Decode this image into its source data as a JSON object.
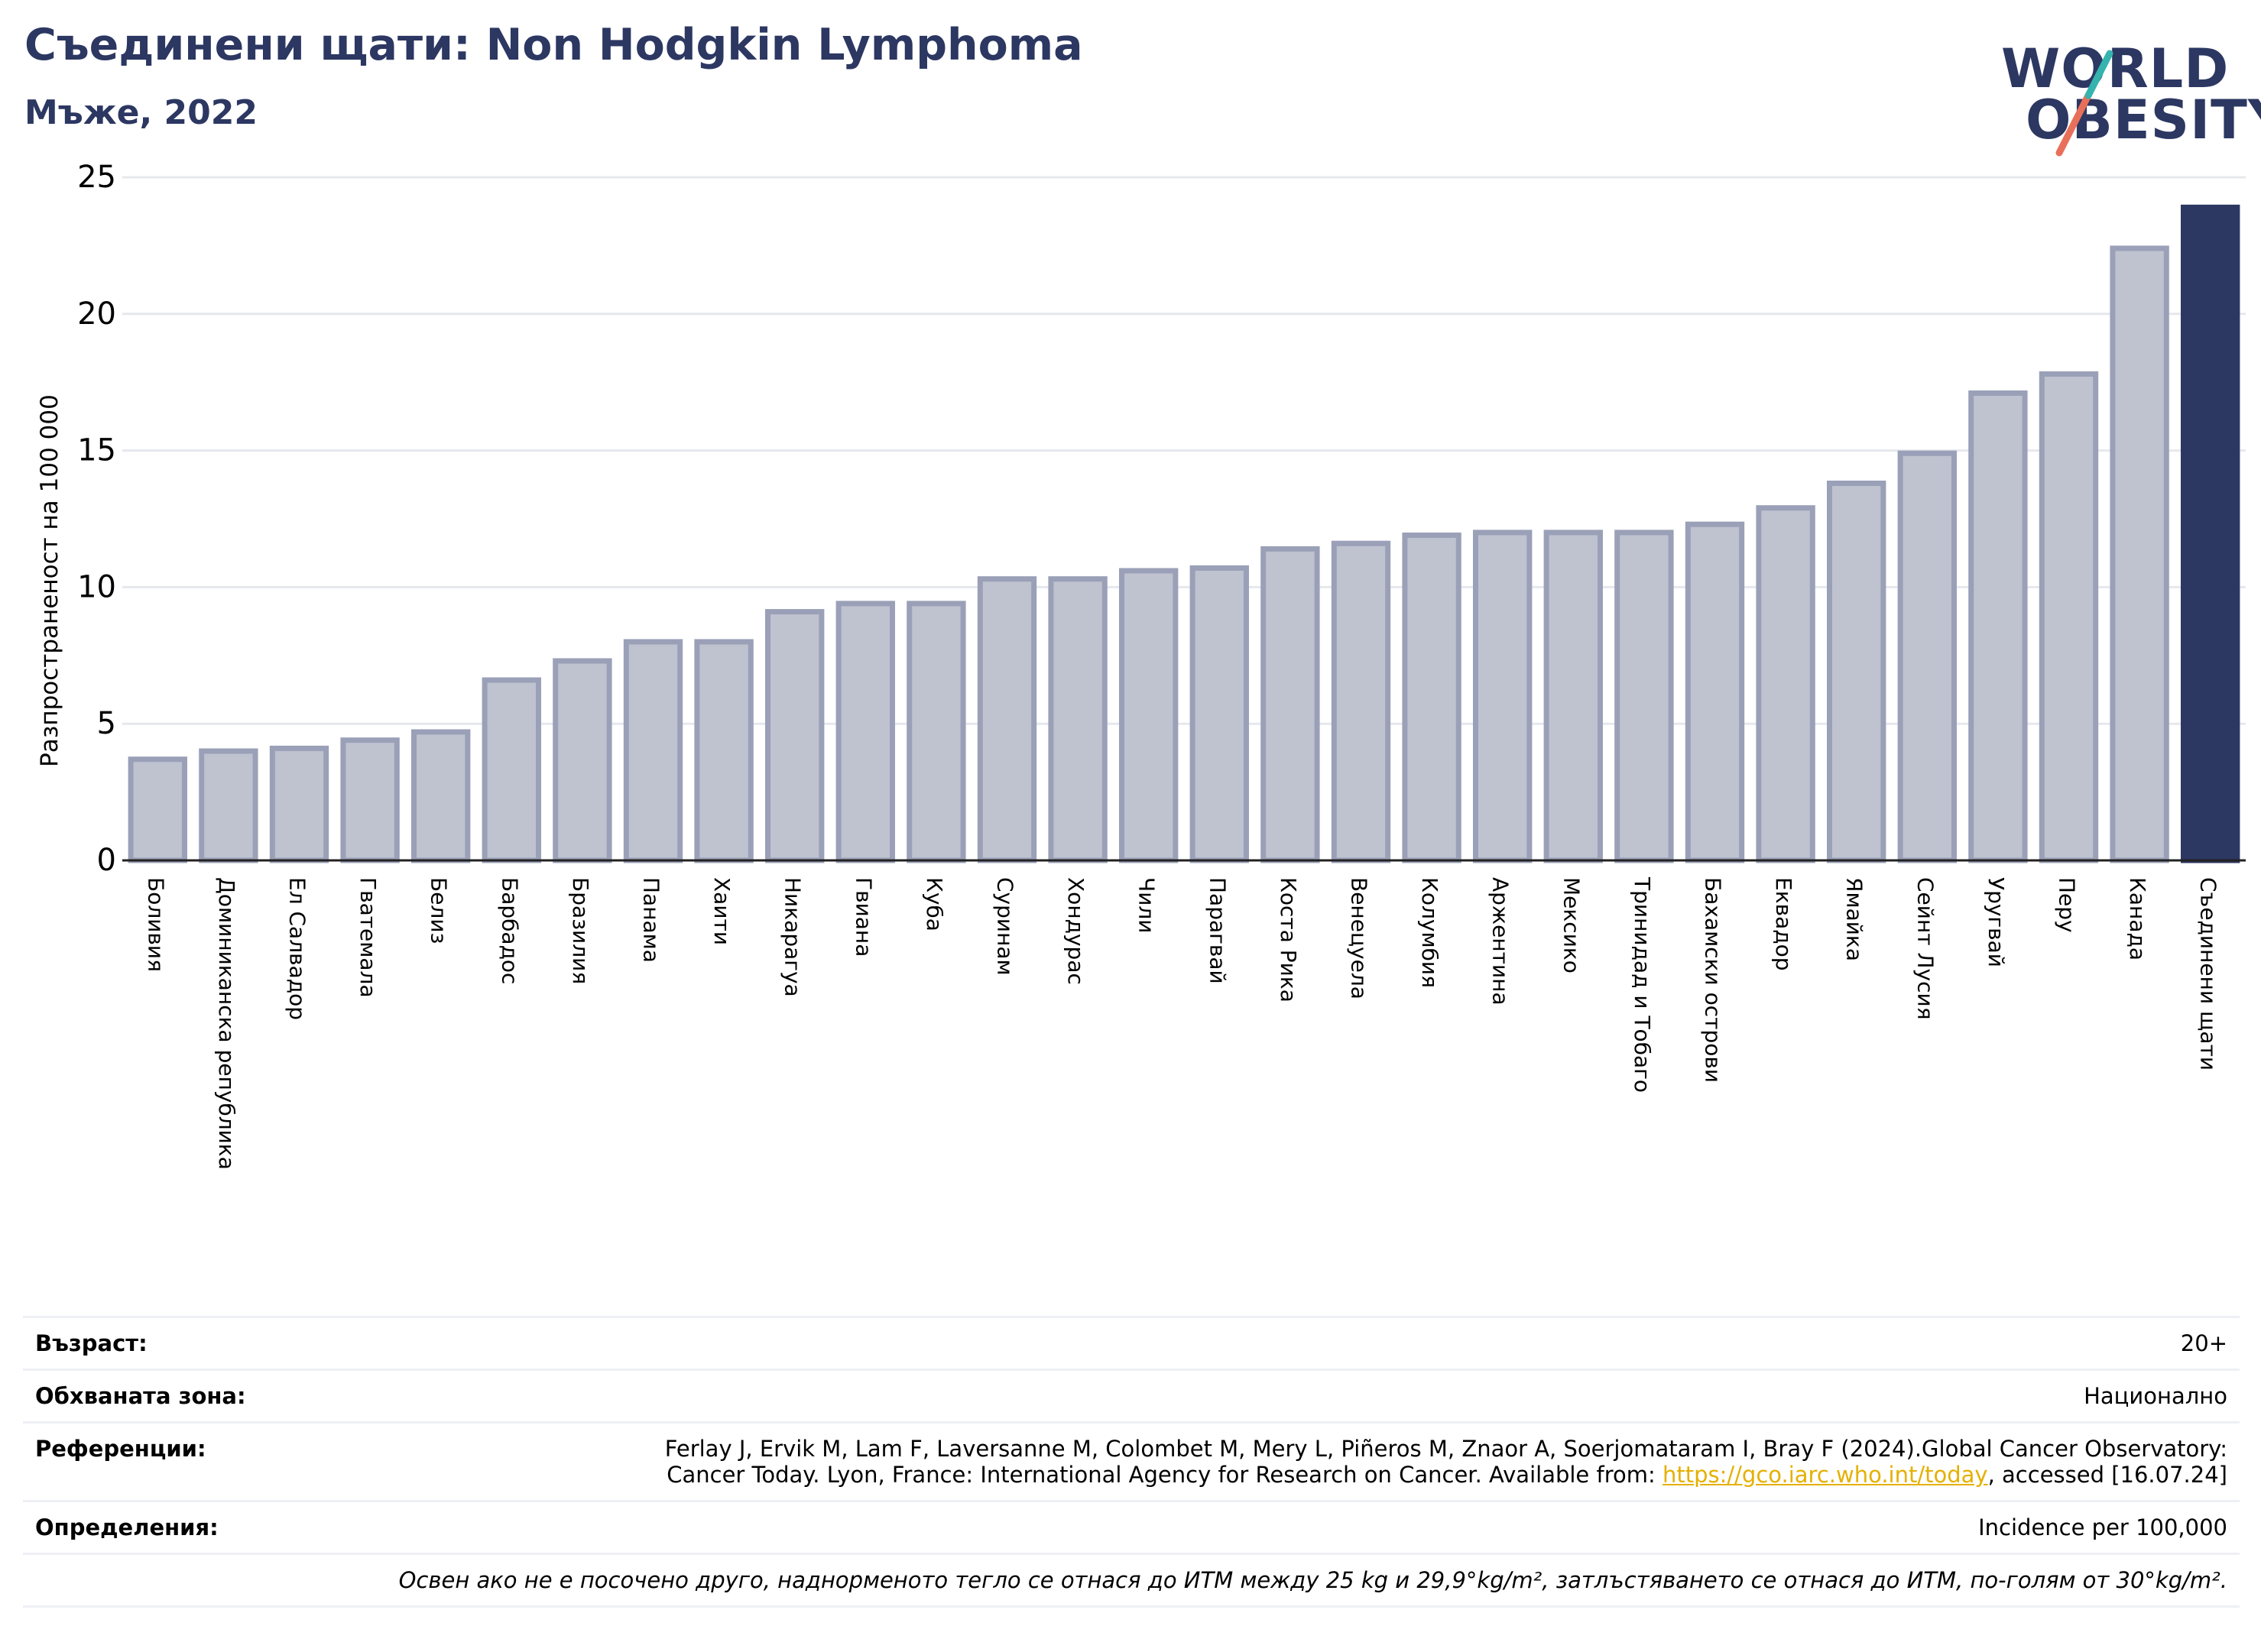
{
  "title": "Съединени щати: Non Hodgkin Lymphoma",
  "subtitle": "Мъже, 2022",
  "logo": {
    "line1": "WORLD",
    "line2": "OBESITY"
  },
  "colors": {
    "bar": "#bfc2cf",
    "bar_edge": "#9aa0b7",
    "highlight": "#2c3762",
    "title": "#2c3762",
    "link": "#e5b000"
  },
  "chart_data": {
    "type": "bar",
    "ylabel": "Разпространеност  на 100 000",
    "ylim": [
      0,
      25
    ],
    "yticks": [
      0,
      5,
      10,
      15,
      20,
      25
    ],
    "grid": true,
    "highlight_category": "Съединени щати",
    "categories": [
      "Боливия",
      "Доминиканска република",
      "Ел Салвадор",
      "Гватемала",
      "Белиз",
      "Барбадос",
      "Бразилия",
      "Панама",
      "Хаити",
      "Никарагуа",
      "Гвиана",
      "Куба",
      "Суринам",
      "Хондурас",
      "Чили",
      "Парагвай",
      "Коста Рика",
      "Венецуела",
      "Колумбия",
      "Аржентина",
      "Мексико",
      "Тринидад и Тобаго",
      "Бахамски острови",
      "Еквадор",
      "Ямайка",
      "Сейнт Лусия",
      "Уругвай",
      "Перу",
      "Канада",
      "Съединени щати"
    ],
    "values": [
      3.7,
      4.0,
      4.1,
      4.4,
      4.7,
      6.6,
      7.3,
      8.0,
      8.0,
      9.1,
      9.4,
      9.4,
      10.3,
      10.3,
      10.6,
      10.7,
      11.4,
      11.6,
      11.9,
      12.0,
      12.0,
      12.0,
      12.3,
      12.9,
      13.8,
      14.9,
      17.1,
      17.8,
      22.4,
      23.9
    ]
  },
  "info": {
    "age_label": "Възраст:",
    "age_value": "20+",
    "area_label": "Обхваната зона:",
    "area_value": "Национално",
    "refs_label": "Референции:",
    "refs_line1": "Ferlay J, Ervik M, Lam F, Laversanne M, Colombet M, Mery L, Piñeros M, Znaor A, Soerjomataram I, Bray F (2024).Global Cancer Observatory:",
    "refs_line2_pre": "Cancer Today. Lyon, France: International Agency for Research on Cancer. Available from: ",
    "refs_link": "https://gco.iarc.who.int/today",
    "refs_line2_post": ", accessed [16.07.24]",
    "defs_label": "Определения:",
    "defs_value": "Incidence per 100,000",
    "note": "Освен ако не е посочено друго, наднорменото тегло се отнася до ИТМ между 25 kg и 29,9°kg/m², затлъстяването се отнася до ИТМ, по-голям от 30°kg/m²."
  }
}
